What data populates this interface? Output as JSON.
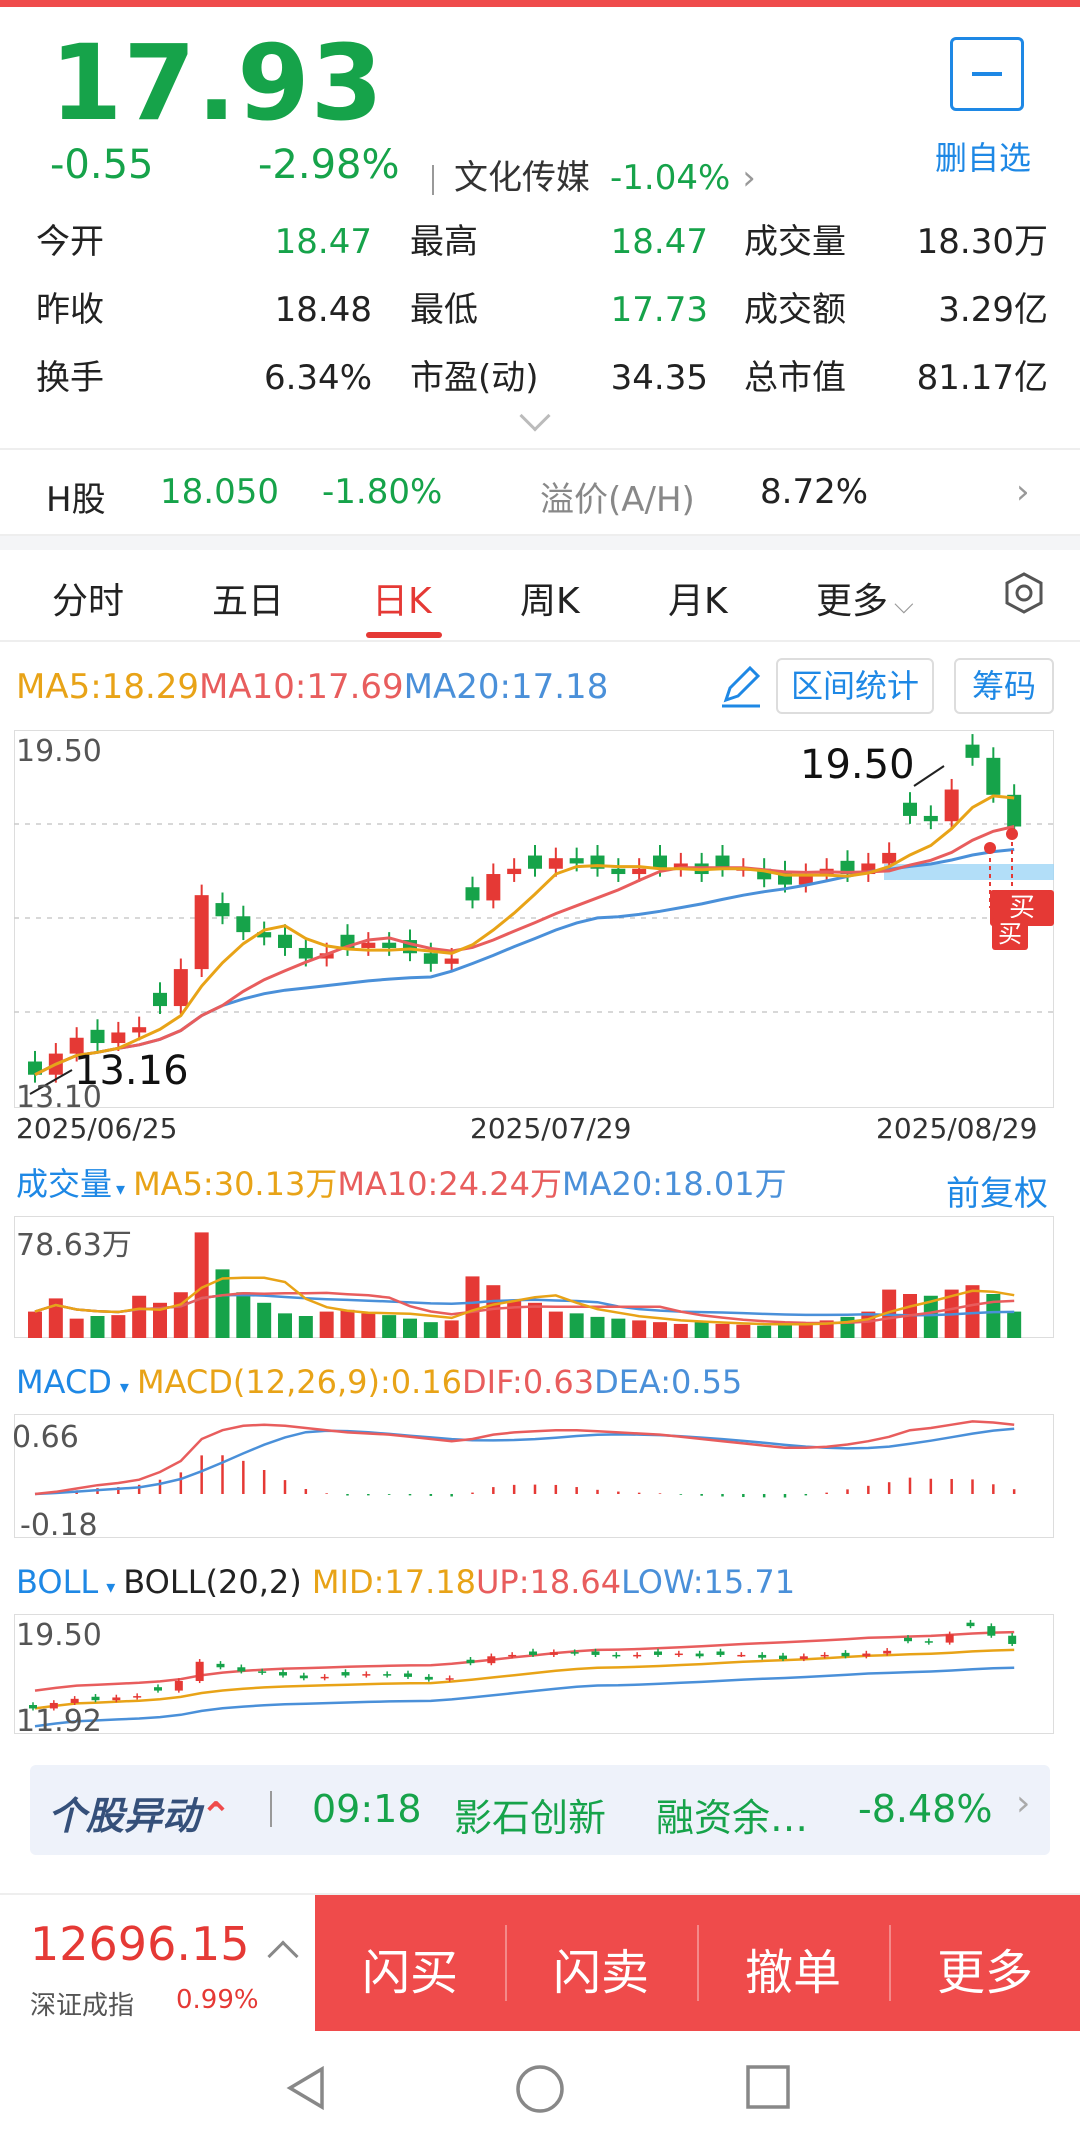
{
  "quote": {
    "price": "17.93",
    "change": "-0.55",
    "change_pct": "-2.98%",
    "sector_name": "文化传媒",
    "sector_pct": "-1.04%",
    "fav_label": "删自选"
  },
  "stats": [
    {
      "label": "今开",
      "value": "18.47",
      "color": "green"
    },
    {
      "label": "最高",
      "value": "18.47",
      "color": "green"
    },
    {
      "label": "成交量",
      "value": "18.30万",
      "color": "black"
    },
    {
      "label": "昨收",
      "value": "18.48",
      "color": "black"
    },
    {
      "label": "最低",
      "value": "17.73",
      "color": "green"
    },
    {
      "label": "成交额",
      "value": "3.29亿",
      "color": "black"
    },
    {
      "label": "换手",
      "value": "6.34%",
      "color": "black"
    },
    {
      "label": "市盈(动)",
      "value": "34.35",
      "color": "black"
    },
    {
      "label": "总市值",
      "value": "81.17亿",
      "color": "black"
    }
  ],
  "h_share": {
    "label": "H股",
    "price": "18.050",
    "pct": "-1.80%",
    "premium_label": "溢价(A/H)",
    "premium_value": "8.72%"
  },
  "tabs": [
    {
      "label": "分时"
    },
    {
      "label": "五日"
    },
    {
      "label": "日K"
    },
    {
      "label": "周K"
    },
    {
      "label": "月K"
    },
    {
      "label": "更多"
    }
  ],
  "kline": {
    "ma5": "MA5:18.29",
    "ma10": "MA10:17.69",
    "ma20": "MA20:17.18",
    "btn_range": "区间统计",
    "btn_chips": "筹码",
    "y_top": "19.50",
    "y_bottom": "13.10",
    "high_marker": "19.50",
    "low_marker": "13.16",
    "dates": [
      "2025/06/25",
      "2025/07/29",
      "2025/08/29"
    ],
    "buy_tag": "买"
  },
  "volume": {
    "label": "成交量",
    "ma5": "MA5:30.13万",
    "ma10": "MA10:24.24万",
    "ma20": "MA20:18.01万",
    "adjust": "前复权",
    "y_top": "78.63万"
  },
  "macd": {
    "label": "MACD",
    "params": "MACD(12,26,9):0.16",
    "dif": "DIF:0.63",
    "dea": "DEA:0.55",
    "y_top": "0.66",
    "y_bottom": "-0.18"
  },
  "boll": {
    "label": "BOLL",
    "params": "BOLL(20,2)",
    "mid": "MID:17.18",
    "up": "UP:18.64",
    "low": "LOW:15.71",
    "y_top": "19.50",
    "y_bottom": "11.92"
  },
  "alert": {
    "tag": "个股异动",
    "time": "09:18",
    "name": "影石创新",
    "event": "融资余…",
    "pct": "-8.48%"
  },
  "index": {
    "value": "12696.15",
    "name": "深证成指",
    "pct": "0.99%"
  },
  "trade_buttons": [
    {
      "label": "闪买"
    },
    {
      "label": "闪卖"
    },
    {
      "label": "撤单"
    },
    {
      "label": "更多"
    }
  ],
  "colors": {
    "up": "#e53935",
    "down": "#16a34a",
    "ma5": "#e8a317",
    "ma10": "#e85d5d",
    "ma20": "#4a90d9",
    "accent": "#1e88e5"
  }
}
